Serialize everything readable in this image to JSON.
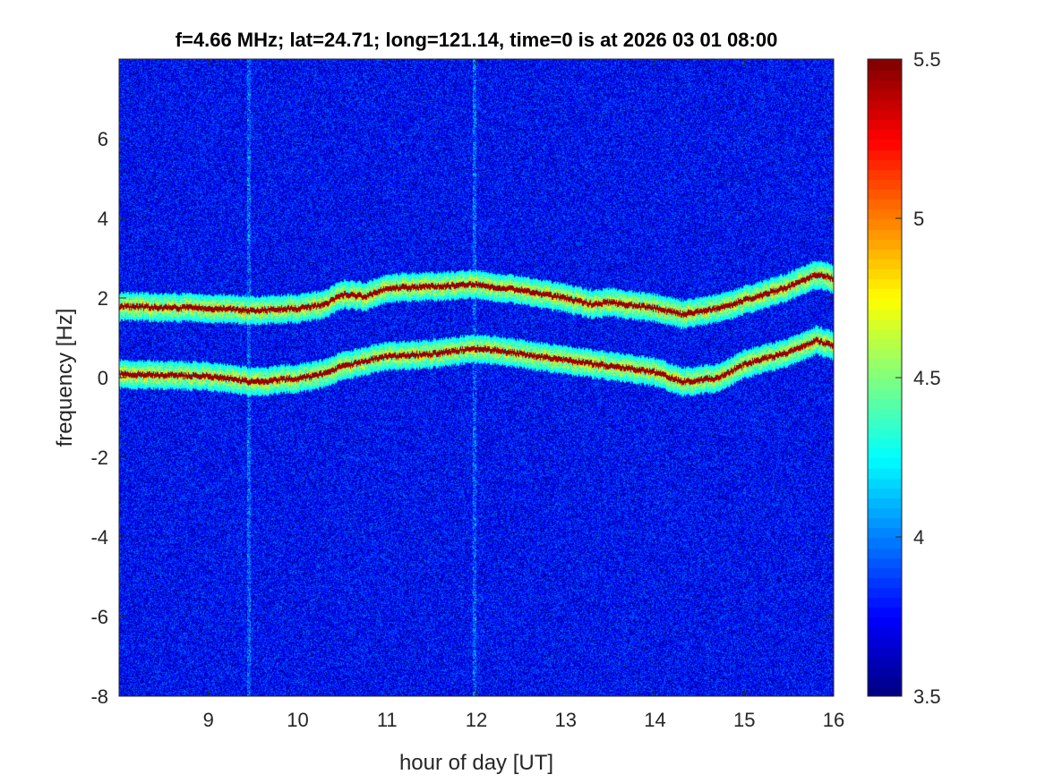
{
  "chart_data": {
    "type": "heatmap",
    "title": "f=4.66 MHz;  lat=24.71; long=121.14, time=0 is at 2026 03 01 08:00",
    "xlabel": "hour of day [UT]",
    "ylabel": "frequency [Hz]",
    "xlim": [
      8,
      16
    ],
    "ylim": [
      -8,
      8
    ],
    "xticks": [
      9,
      10,
      11,
      12,
      13,
      14,
      15,
      16
    ],
    "yticks": [
      -8,
      -6,
      -4,
      -2,
      0,
      2,
      4,
      6
    ],
    "colormap": "jet",
    "clim": [
      3.5,
      5.5
    ],
    "colorbar_ticks": [
      3.5,
      4,
      4.5,
      5,
      5.5
    ],
    "colorbar_tick_labels": [
      "3.5",
      "4",
      "4.5",
      "5",
      "5.5"
    ],
    "background_level": 3.75,
    "traces": [
      {
        "name": "upper trace",
        "x": [
          8,
          9,
          9.5,
          10,
          10.3,
          10.5,
          10.75,
          11,
          11.5,
          12,
          12.5,
          13,
          13.3,
          13.5,
          14,
          14.3,
          14.7,
          15,
          15.5,
          15.8,
          16
        ],
        "y": [
          1.8,
          1.75,
          1.7,
          1.75,
          1.85,
          2.1,
          2.05,
          2.25,
          2.3,
          2.35,
          2.2,
          2.0,
          1.85,
          1.9,
          1.75,
          1.6,
          1.75,
          1.95,
          2.3,
          2.6,
          2.5
        ]
      },
      {
        "name": "lower trace",
        "x": [
          8,
          9,
          9.5,
          10,
          10.2,
          10.5,
          11,
          11.5,
          12,
          12.5,
          13,
          13.5,
          14,
          14.3,
          14.7,
          15,
          15.5,
          15.8,
          16
        ],
        "y": [
          0.1,
          0.05,
          -0.1,
          0.0,
          0.05,
          0.3,
          0.55,
          0.6,
          0.75,
          0.6,
          0.45,
          0.3,
          0.15,
          -0.1,
          0.0,
          0.35,
          0.65,
          0.95,
          0.8
        ]
      }
    ],
    "vertical_stripes_hours": [
      9.45,
      11.97
    ]
  }
}
